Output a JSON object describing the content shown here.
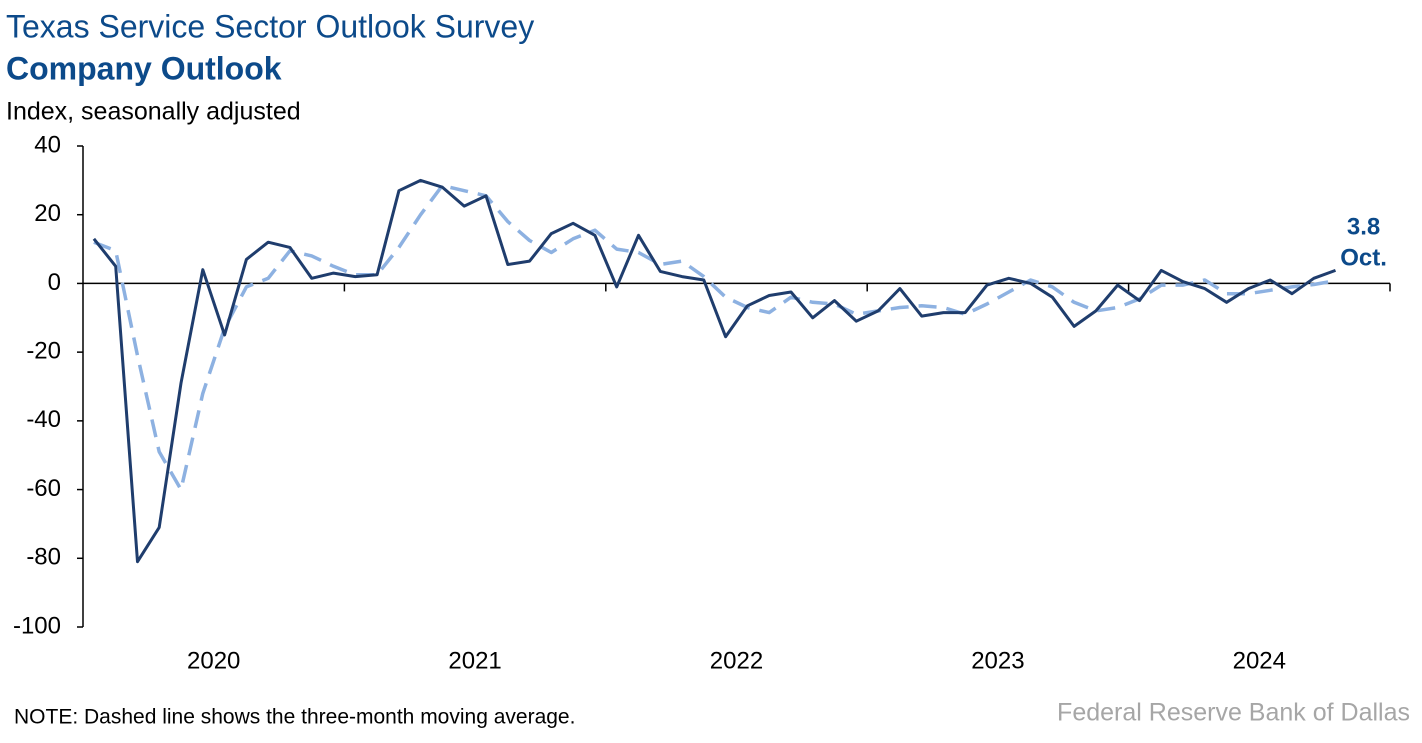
{
  "chart_data": {
    "type": "line",
    "title": "Texas Service Sector Outlook Survey",
    "subtitle": "Company Outlook",
    "y_axis_label": "Index, seasonally adjusted",
    "note": "NOTE: Dashed line shows the three-month moving average.",
    "source": "Federal Reserve Bank of Dallas",
    "annotation": "Oct.",
    "categories": [
      "2020",
      null,
      null,
      null,
      null,
      null,
      null,
      null,
      null,
      null,
      null,
      null,
      "2021",
      null,
      null,
      null,
      null,
      null,
      null,
      null,
      null,
      null,
      null,
      null,
      "2022",
      null,
      null,
      null,
      null,
      null,
      null,
      null,
      null,
      null,
      null,
      null,
      "2023",
      null,
      null,
      null,
      null,
      null,
      null,
      null,
      null,
      null,
      null,
      null,
      "2024",
      null,
      null,
      null,
      null,
      null,
      null,
      null,
      null,
      null,
      null,
      null
    ],
    "series": [
      {
        "color": "#1f3d6d",
        "dashed": false,
        "values": [
          13,
          5,
          -81,
          -71,
          -29,
          4,
          -15,
          7,
          12,
          10.5,
          1.5,
          3,
          2,
          2.5,
          27,
          30,
          28,
          22.5,
          25.5,
          5.5,
          6.5,
          14.5,
          17.5,
          14,
          -1,
          14,
          3.5,
          2,
          1,
          -15.5,
          -6.5,
          -3.5,
          -2.5,
          -10,
          -5,
          -11,
          -8,
          -1.5,
          -9.5,
          -8.5,
          -8.5,
          -0.5,
          1.5,
          0,
          -4,
          -12.5,
          -8,
          -0.5,
          -5,
          3.8,
          0.5,
          -1.5,
          -5.5,
          -1.5,
          1,
          -3,
          1.5,
          3.8,
          null,
          null
        ]
      },
      {
        "color": "#8db1e1",
        "dashed": true,
        "values": [
          12,
          9.5,
          -21,
          -49,
          -60,
          -32,
          -13,
          -1,
          1.5,
          9.5,
          8,
          5,
          2.5,
          2.5,
          10.5,
          20,
          28.5,
          27,
          25.5,
          18,
          12.5,
          9,
          13,
          15.5,
          10,
          9,
          5.5,
          6.5,
          2,
          -4,
          -7,
          -8.5,
          -4,
          -5.5,
          -6,
          -9,
          -8,
          -7,
          -6.5,
          -7,
          -9,
          -6,
          -2.5,
          1,
          -1,
          -5.5,
          -8,
          -7,
          -4.5,
          -0.5,
          -0.5,
          1,
          -3,
          -3,
          -2,
          -1,
          -0.3,
          0.8,
          null,
          null
        ]
      }
    ],
    "ylim": [
      -100,
      40
    ],
    "yticks": [
      -100,
      -80,
      -60,
      -40,
      -20,
      0,
      20,
      40
    ],
    "grid": false
  }
}
